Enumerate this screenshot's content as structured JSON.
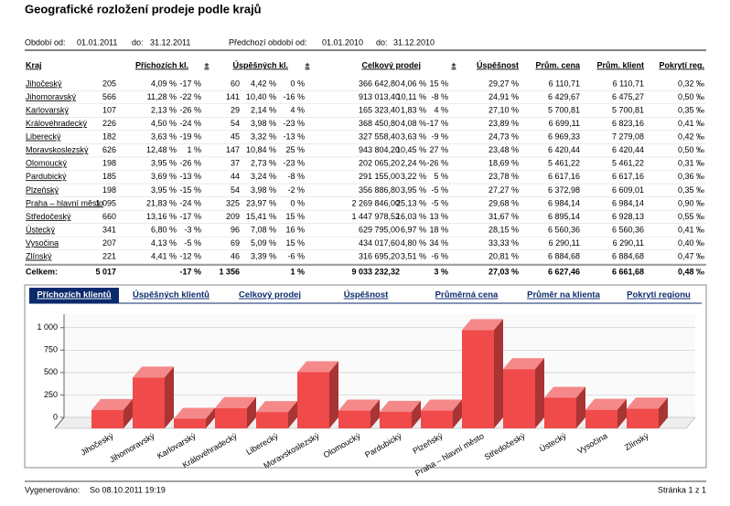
{
  "header": {
    "title": "Geografické rozložení prodeje podle krajů",
    "period_label": "Období od:",
    "period_from": "01.01.2011",
    "to_label": "do:",
    "period_to": "31.12.2011",
    "prev_label": "Předchozí období od:",
    "prev_from": "01.01.2010",
    "prev_to_label": "do:",
    "prev_to": "31.12.2010"
  },
  "table": {
    "columns": [
      "Kraj",
      "Příchozích kl.",
      "±",
      "Úspěšných kl.",
      "±",
      "Celkový prodej",
      "±",
      "Úspěšnost",
      "Prům. cena",
      "Prům. klient",
      "Pokrytí reg."
    ],
    "rows": [
      [
        "Jihočeský",
        "205",
        "4,09 %",
        "-17 %",
        "60",
        "4,42 %",
        "0 %",
        "366 642,80",
        "4,06 %",
        "15 %",
        "29,27 %",
        "6 110,71",
        "6 110,71",
        "0,32 ‰"
      ],
      [
        "Jihomoravský",
        "566",
        "11,28 %",
        "-22 %",
        "141",
        "10,40 %",
        "-16 %",
        "913 013,40",
        "10,11 %",
        "-8 %",
        "24,91 %",
        "6 429,67",
        "6 475,27",
        "0,50 ‰"
      ],
      [
        "Karlovarský",
        "107",
        "2,13 %",
        "-26 %",
        "29",
        "2,14 %",
        "4 %",
        "165 323,40",
        "1,83 %",
        "4 %",
        "27,10 %",
        "5 700,81",
        "5 700,81",
        "0,35 ‰"
      ],
      [
        "Královéhradecký",
        "226",
        "4,50 %",
        "-24 %",
        "54",
        "3,98 %",
        "-23 %",
        "368 450,80",
        "4,08 %",
        "-17 %",
        "23,89 %",
        "6 699,11",
        "6 823,16",
        "0,41 ‰"
      ],
      [
        "Liberecký",
        "182",
        "3,63 %",
        "-19 %",
        "45",
        "3,32 %",
        "-13 %",
        "327 558,40",
        "3,63 %",
        "-9 %",
        "24,73 %",
        "6 969,33",
        "7 279,08",
        "0,42 ‰"
      ],
      [
        "Moravskoslezský",
        "626",
        "12,48 %",
        "1 %",
        "147",
        "10,84 %",
        "25 %",
        "943 804,20",
        "10,45 %",
        "27 %",
        "23,48 %",
        "6 420,44",
        "6 420,44",
        "0,50 ‰"
      ],
      [
        "Olomoucký",
        "198",
        "3,95 %",
        "-26 %",
        "37",
        "2,73 %",
        "-23 %",
        "202 065,20",
        "2,24 %",
        "-26 %",
        "18,69 %",
        "5 461,22",
        "5 461,22",
        "0,31 ‰"
      ],
      [
        "Pardubický",
        "185",
        "3,69 %",
        "-13 %",
        "44",
        "3,24 %",
        "-8 %",
        "291 155,00",
        "3,22 %",
        "5 %",
        "23,78 %",
        "6 617,16",
        "6 617,16",
        "0,36 ‰"
      ],
      [
        "Plzeňský",
        "198",
        "3,95 %",
        "-15 %",
        "54",
        "3,98 %",
        "-2 %",
        "356 886,80",
        "3,95 %",
        "-5 %",
        "27,27 %",
        "6 372,98",
        "6 609,01",
        "0,35 ‰"
      ],
      [
        "Praha – hlavní město",
        "1 095",
        "21,83 %",
        "-24 %",
        "325",
        "23,97 %",
        "0 %",
        "2 269 846,00",
        "25,13 %",
        "-5 %",
        "29,68 %",
        "6 984,14",
        "6 984,14",
        "0,90 ‰"
      ],
      [
        "Středočeský",
        "660",
        "13,16 %",
        "-17 %",
        "209",
        "15,41 %",
        "15 %",
        "1 447 978,52",
        "16,03 %",
        "13 %",
        "31,67 %",
        "6 895,14",
        "6 928,13",
        "0,55 ‰"
      ],
      [
        "Ústecký",
        "341",
        "6,80 %",
        "-3 %",
        "96",
        "7,08 %",
        "16 %",
        "629 795,00",
        "6,97 %",
        "18 %",
        "28,15 %",
        "6 560,36",
        "6 560,36",
        "0,41 ‰"
      ],
      [
        "Vysočina",
        "207",
        "4,13 %",
        "-5 %",
        "69",
        "5,09 %",
        "15 %",
        "434 017,60",
        "4,80 %",
        "34 %",
        "33,33 %",
        "6 290,11",
        "6 290,11",
        "0,40 ‰"
      ],
      [
        "Zlínský",
        "221",
        "4,41 %",
        "-12 %",
        "46",
        "3,39 %",
        "-6 %",
        "316 695,20",
        "3,51 %",
        "-6 %",
        "20,81 %",
        "6 884,68",
        "6 884,68",
        "0,47 ‰"
      ]
    ],
    "total_label": "Celkem:",
    "total": [
      "5 017",
      "-17 %",
      "1 356",
      "1 %",
      "9 033 232,32",
      "3 %",
      "27,03 %",
      "6 627,46",
      "6 661,68",
      "0,48 ‰"
    ]
  },
  "tabs": [
    "Příchozích klientů",
    "Úspěšných klientů",
    "Celkový prodej",
    "Úspěšnost",
    "Průměrná cena",
    "Průměr na klienta",
    "Pokrytí regionu"
  ],
  "active_tab": 0,
  "chart_data": {
    "type": "bar3d",
    "categories": [
      "Jihočeský",
      "Jihomoravský",
      "Karlovarský",
      "Královéhradecký",
      "Liberecký",
      "Moravskoslezský",
      "Olomoucký",
      "Pardubický",
      "Plzeňský",
      "Praha – hlavní město",
      "Středočeský",
      "Ústecký",
      "Vysočina",
      "Zlínský"
    ],
    "values": [
      205,
      566,
      107,
      226,
      182,
      626,
      198,
      185,
      198,
      1095,
      660,
      341,
      207,
      221
    ],
    "color": "#f04a4a",
    "ylim": [
      0,
      1150
    ],
    "yticks": [
      0,
      250,
      500,
      750,
      {
        "value": 1000,
        "label": "1 000"
      }
    ],
    "grid": true
  },
  "footer": {
    "generated_label": "Vygenerováno:",
    "generated": "So 08.10.2011 19:19",
    "page": "Stránka 1 z 1"
  }
}
